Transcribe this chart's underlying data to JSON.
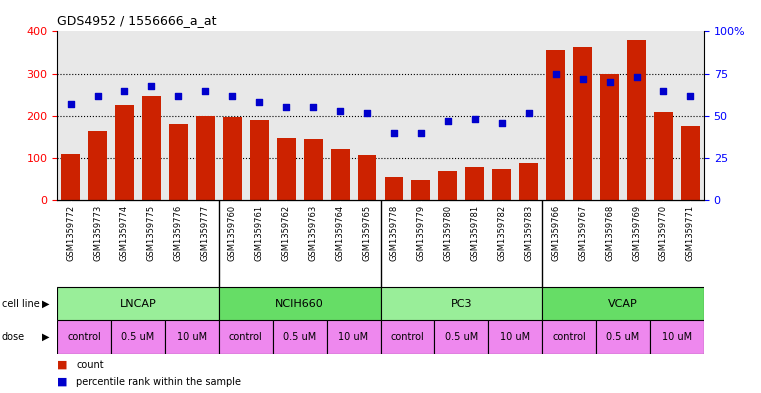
{
  "title": "GDS4952 / 1556666_a_at",
  "samples": [
    "GSM1359772",
    "GSM1359773",
    "GSM1359774",
    "GSM1359775",
    "GSM1359776",
    "GSM1359777",
    "GSM1359760",
    "GSM1359761",
    "GSM1359762",
    "GSM1359763",
    "GSM1359764",
    "GSM1359765",
    "GSM1359778",
    "GSM1359779",
    "GSM1359780",
    "GSM1359781",
    "GSM1359782",
    "GSM1359783",
    "GSM1359766",
    "GSM1359767",
    "GSM1359768",
    "GSM1359769",
    "GSM1359770",
    "GSM1359771"
  ],
  "counts": [
    110,
    165,
    225,
    248,
    182,
    200,
    198,
    190,
    148,
    145,
    122,
    108,
    55,
    48,
    70,
    80,
    75,
    88,
    357,
    362,
    300,
    380,
    210,
    177
  ],
  "percentiles": [
    57,
    62,
    65,
    68,
    62,
    65,
    62,
    58,
    55,
    55,
    53,
    52,
    40,
    40,
    47,
    48,
    46,
    52,
    75,
    72,
    70,
    73,
    65,
    62
  ],
  "cell_line_groups": [
    {
      "label": "LNCAP",
      "start": 0,
      "end": 6,
      "color": "#99ee99"
    },
    {
      "label": "NCIH660",
      "start": 6,
      "end": 12,
      "color": "#66dd66"
    },
    {
      "label": "PC3",
      "start": 12,
      "end": 18,
      "color": "#99ee99"
    },
    {
      "label": "VCAP",
      "start": 18,
      "end": 24,
      "color": "#66dd66"
    }
  ],
  "dose_groups": [
    {
      "label": "control",
      "start": 0,
      "end": 2,
      "color": "#ee88ee"
    },
    {
      "label": "0.5 uM",
      "start": 2,
      "end": 4,
      "color": "#ee88ee"
    },
    {
      "label": "10 uM",
      "start": 4,
      "end": 6,
      "color": "#ee88ee"
    },
    {
      "label": "control",
      "start": 6,
      "end": 8,
      "color": "#ee88ee"
    },
    {
      "label": "0.5 uM",
      "start": 8,
      "end": 10,
      "color": "#ee88ee"
    },
    {
      "label": "10 uM",
      "start": 10,
      "end": 12,
      "color": "#ee88ee"
    },
    {
      "label": "control",
      "start": 12,
      "end": 14,
      "color": "#ee88ee"
    },
    {
      "label": "0.5 uM",
      "start": 14,
      "end": 16,
      "color": "#ee88ee"
    },
    {
      "label": "10 uM",
      "start": 16,
      "end": 18,
      "color": "#ee88ee"
    },
    {
      "label": "control",
      "start": 18,
      "end": 20,
      "color": "#ee88ee"
    },
    {
      "label": "0.5 uM",
      "start": 20,
      "end": 22,
      "color": "#ee88ee"
    },
    {
      "label": "10 uM",
      "start": 22,
      "end": 24,
      "color": "#ee88ee"
    }
  ],
  "bar_color": "#cc2200",
  "dot_color": "#0000cc",
  "ylim_left": [
    0,
    400
  ],
  "yticks_left": [
    0,
    100,
    200,
    300,
    400
  ],
  "yticks_right": [
    0,
    25,
    50,
    75,
    100
  ],
  "yticklabels_right": [
    "0",
    "25",
    "50",
    "75",
    "100%"
  ],
  "grid_values": [
    100,
    200,
    300
  ],
  "plot_bg": "#e8e8e8",
  "xlabel_bg": "#cccccc",
  "fig_bg": "#ffffff"
}
